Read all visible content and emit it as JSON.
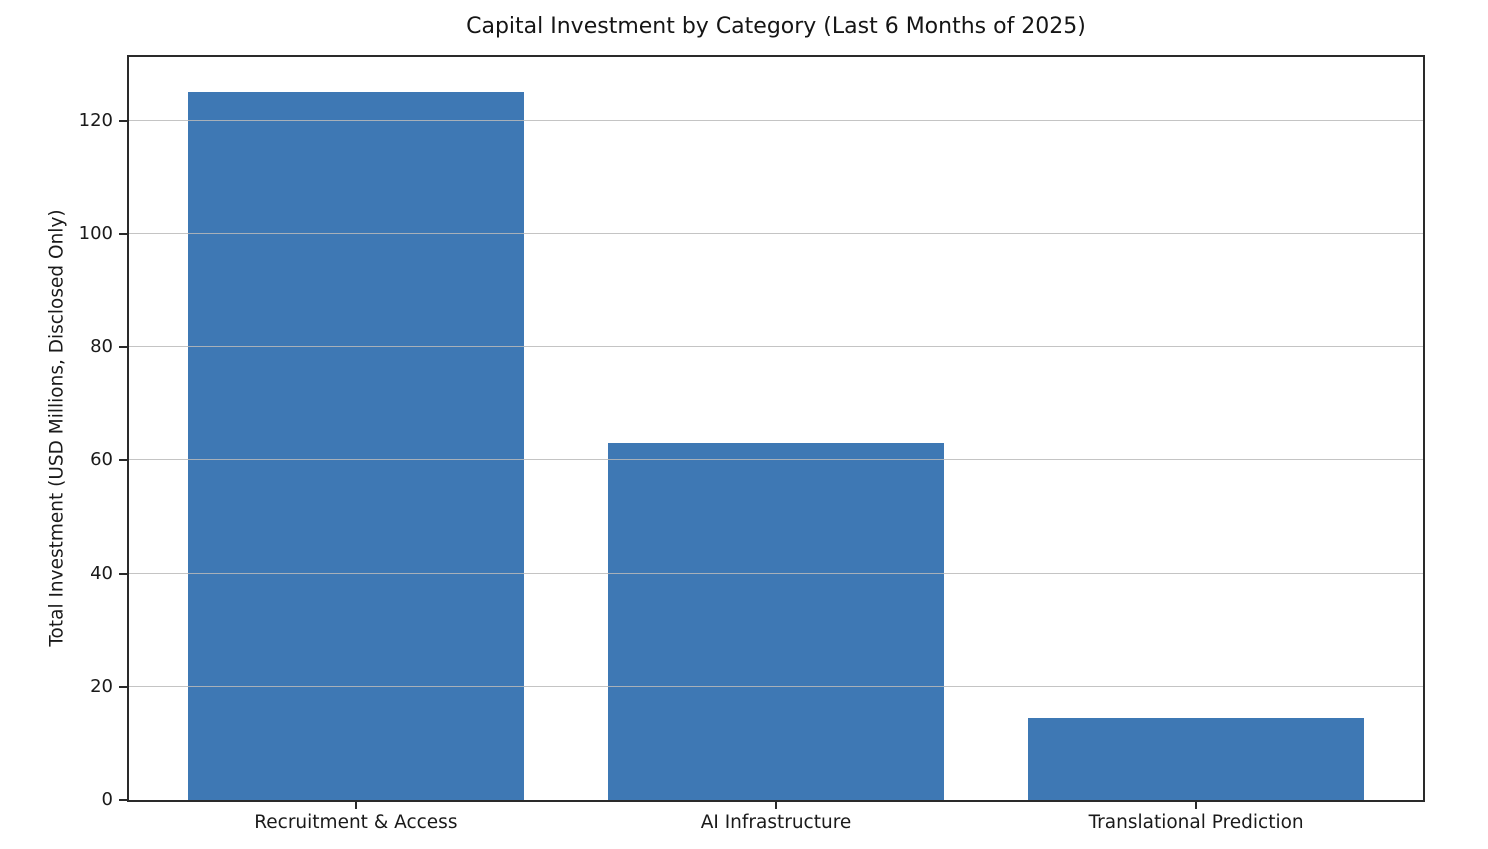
{
  "figure": {
    "background": "#ffffff"
  },
  "chart_data": {
    "type": "bar",
    "title": "Capital Investment by Category (Last 6 Months of 2025)",
    "categories": [
      "Recruitment & Access",
      "AI Infrastructure",
      "Translational Prediction"
    ],
    "values": [
      125,
      63,
      14.4
    ],
    "xlabel": "",
    "ylabel": "Total Investment (USD Millions, Disclosed Only)",
    "yticks": [
      0,
      20,
      40,
      60,
      80,
      100,
      120
    ],
    "ylim": [
      0,
      131.25
    ],
    "xlim": [
      -0.54,
      2.54
    ],
    "bar_width": 0.8,
    "bar_color": "#3e78b4",
    "grid": true,
    "grid_color": "#bababa",
    "spine_color": "#2a2a2a",
    "text_color": "#1a1a1a",
    "legend": "none"
  }
}
